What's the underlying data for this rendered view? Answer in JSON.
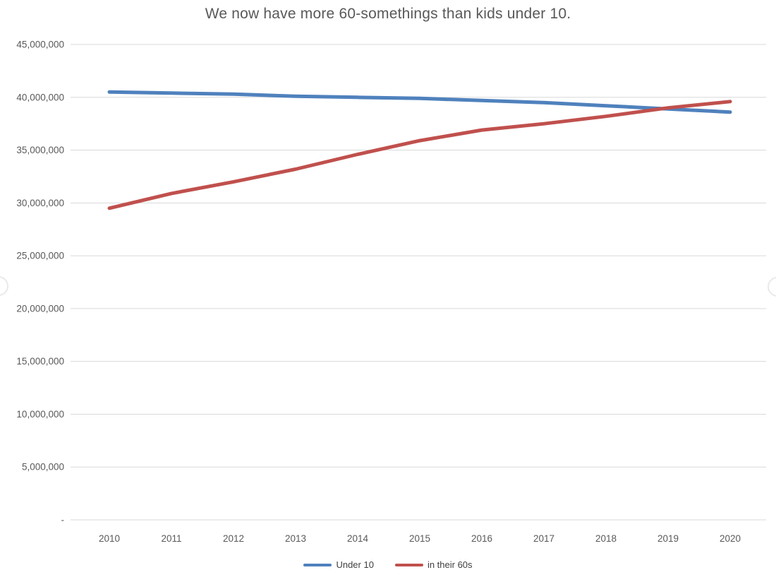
{
  "chart_data": {
    "type": "line",
    "title": "We now have more 60-somethings than kids under 10.",
    "x_categories": [
      "2010",
      "2011",
      "2012",
      "2013",
      "2014",
      "2015",
      "2016",
      "2017",
      "2018",
      "2019",
      "2020"
    ],
    "series": [
      {
        "name": "Under 10",
        "color": "#4f81bd",
        "values": [
          40500000,
          40400000,
          40300000,
          40100000,
          40000000,
          39900000,
          39700000,
          39500000,
          39200000,
          38900000,
          38600000
        ]
      },
      {
        "name": "in their 60s",
        "color": "#c0504d",
        "values": [
          29500000,
          30900000,
          32000000,
          33200000,
          34600000,
          35900000,
          36900000,
          37500000,
          38200000,
          39000000,
          39600000
        ]
      }
    ],
    "ylim": [
      0,
      45000000
    ],
    "ytick_interval": 5000000,
    "ytick_labels_top_to_bottom": [
      "45,000,000",
      "40,000,000",
      "35,000,000",
      "30,000,000",
      "25,000,000",
      "20,000,000",
      "15,000,000",
      "10,000,000",
      "5,000,000",
      "-"
    ],
    "grid": "horizontal-on",
    "legend_position": "bottom"
  },
  "colors": {
    "background": "#ffffff",
    "gridline": "#d9d9d9",
    "axis_text": "#595959",
    "title_text": "#595959",
    "series_under10": "#4f81bd",
    "series_60s": "#c0504d"
  }
}
